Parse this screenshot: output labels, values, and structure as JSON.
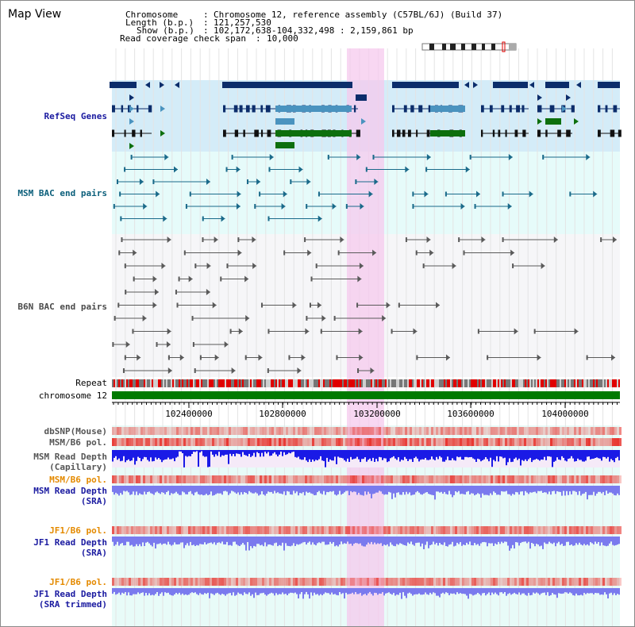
{
  "title": "Map View",
  "info": {
    "chromosome_key": "Chromosome",
    "chromosome_value": "Chromosome 12, reference assembly (C57BL/6J) (Build 37)",
    "length_key": "Length (b.p.)",
    "length_value": "121,257,530",
    "show_key": "Show (b.p.)",
    "show_value": "102,172,638-104,332,498 : 2,159,861 bp",
    "span_key": "Read coverage check span",
    "span_value": "10,000"
  },
  "tracks": {
    "refseq": "RefSeq Genes",
    "msm_bac": "MSM BAC end pairs",
    "b6n_bac": "B6N BAC end pairs",
    "repeat": "Repeat",
    "chromosome": "chromosome 12",
    "dbsnp": "dbSNP(Mouse)",
    "msm_b6_pol_1": "MSM/B6 pol.",
    "msm_read_depth_cap_1": "MSM Read Depth",
    "msm_read_depth_cap_2": "(Capillary)",
    "msm_b6_pol_2": "MSM/B6 pol.",
    "msm_read_depth_sra_1": "MSM Read Depth",
    "msm_read_depth_sra_2": "(SRA)",
    "jf1_b6_pol_1": "JF1/B6 pol.",
    "jf1_read_depth_sra_1": "JF1 Read Depth",
    "jf1_read_depth_sra_2": "(SRA)",
    "jf1_b6_pol_2": "JF1/B6 pol.",
    "jf1_read_depth_trim_1": "JF1 Read Depth",
    "jf1_read_depth_trim_2": "(SRA trimmed)"
  },
  "axis": {
    "ticks": [
      "102400000",
      "102800000",
      "103200000",
      "103600000",
      "104000000"
    ]
  },
  "colors": {
    "refseq_bg": "#d4ecf8",
    "bac_bg": "#e6fbfa",
    "highlight": "#f6c9ee",
    "gene_dark": "#0c2d6b",
    "gene_mid": "#4a93bf",
    "gene_green": "#0d6f0d",
    "msm_pair": "#1a6a8a",
    "b6n_pair": "#5a5a5a",
    "chromosome_bar": "#007a00",
    "read_depth": "#1a1ae6",
    "read_depth_light": "#7a7aee",
    "pol_red": "#e8302a"
  }
}
